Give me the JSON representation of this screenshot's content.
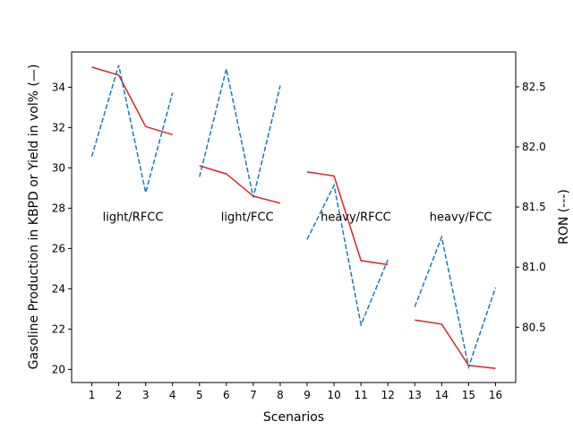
{
  "chart_data": {
    "type": "line",
    "xlabel": "Scenarios",
    "ylabel_left": "Gasoline Production in KBPD or Yield in vol% (—)",
    "ylabel_right": "RON (---)",
    "x_ticks": [
      1,
      2,
      3,
      4,
      5,
      6,
      7,
      8,
      9,
      10,
      11,
      12,
      13,
      14,
      15,
      16
    ],
    "xlim": [
      0.25,
      16.75
    ],
    "ylim_left": [
      19.35,
      35.75
    ],
    "ylim_right": [
      80.04,
      82.79
    ],
    "y_ticks_left": [
      20,
      22,
      24,
      26,
      28,
      30,
      32,
      34
    ],
    "y_ticks_right": [
      80.5,
      81.0,
      81.5,
      82.0,
      82.5
    ],
    "production_color": "#d62728",
    "ron_color": "#1f77b4",
    "groups": [
      {
        "label": "light/RFCC",
        "label_at": {
          "x": 1.4,
          "y": 27.6
        },
        "x": [
          1,
          2,
          3,
          4
        ],
        "production": [
          35.0,
          34.6,
          32.05,
          31.65
        ],
        "ron": [
          81.92,
          82.68,
          81.62,
          82.45
        ]
      },
      {
        "label": "light/FCC",
        "label_at": {
          "x": 5.8,
          "y": 27.6
        },
        "x": [
          5,
          6,
          7,
          8
        ],
        "production": [
          30.1,
          29.7,
          28.6,
          28.25
        ],
        "ron": [
          81.75,
          82.65,
          81.58,
          82.51
        ]
      },
      {
        "label": "heavy/RFCC",
        "label_at": {
          "x": 9.5,
          "y": 27.6
        },
        "x": [
          9,
          10,
          11,
          12
        ],
        "production": [
          29.8,
          29.6,
          25.4,
          25.2
        ],
        "ron": [
          81.23,
          81.68,
          80.52,
          81.06
        ]
      },
      {
        "label": "heavy/FCC",
        "label_at": {
          "x": 13.55,
          "y": 27.6
        },
        "x": [
          13,
          14,
          15,
          16
        ],
        "production": [
          22.45,
          22.25,
          20.2,
          20.05
        ],
        "ron": [
          80.67,
          81.25,
          80.17,
          80.83
        ]
      }
    ]
  }
}
